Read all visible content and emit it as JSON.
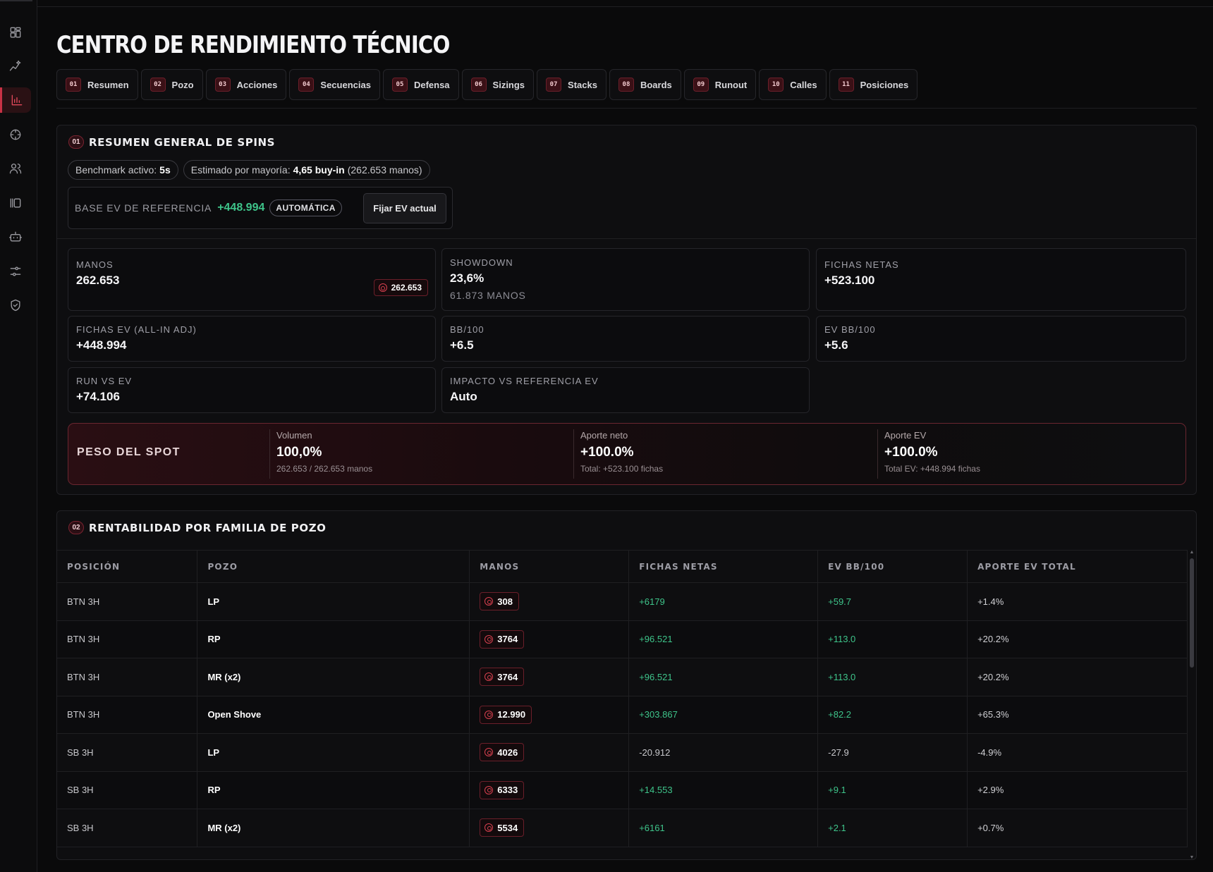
{
  "sidebar": {
    "items": [
      {
        "name": "dashboard-icon"
      },
      {
        "name": "sparkle-chart-icon"
      },
      {
        "name": "bar-chart-icon",
        "active": true
      },
      {
        "name": "crosshair-icon"
      },
      {
        "name": "users-icon"
      },
      {
        "name": "library-icon"
      },
      {
        "name": "bot-icon"
      },
      {
        "name": "sliders-icon"
      },
      {
        "name": "shield-check-icon"
      }
    ]
  },
  "page": {
    "title": "CENTRO DE RENDIMIENTO TÉCNICO"
  },
  "tabs": [
    {
      "num": "01",
      "label": "Resumen"
    },
    {
      "num": "02",
      "label": "Pozo"
    },
    {
      "num": "03",
      "label": "Acciones"
    },
    {
      "num": "04",
      "label": "Secuencias"
    },
    {
      "num": "05",
      "label": "Defensa"
    },
    {
      "num": "06",
      "label": "Sizings"
    },
    {
      "num": "07",
      "label": "Stacks"
    },
    {
      "num": "08",
      "label": "Boards"
    },
    {
      "num": "09",
      "label": "Runout"
    },
    {
      "num": "10",
      "label": "Calles"
    },
    {
      "num": "11",
      "label": "Posiciones"
    }
  ],
  "summary": {
    "num": "01",
    "title": "RESUMEN GENERAL DE SPINS",
    "benchmark_label": "Benchmark activo:",
    "benchmark_value": "5s",
    "estimate_label": "Estimado por mayoría:",
    "estimate_value": "4,65 buy-in",
    "estimate_extra": "(262.653 manos)",
    "base_ev_label": "BASE EV DE REFERENCIA",
    "base_ev_value": "+448.994",
    "base_ev_badge": "AUTOMÁTICA",
    "fix_button": "Fijar EV actual",
    "stats": {
      "manos": {
        "label": "MANOS",
        "value": "262.653",
        "chip": "262.653"
      },
      "showdown": {
        "label": "SHOWDOWN",
        "value": "23,6%",
        "sub": "61.873 MANOS"
      },
      "fichas_netas": {
        "label": "FICHAS NETAS",
        "value": "+523.100"
      },
      "fichas_ev": {
        "label": "FICHAS EV (ALL-IN ADJ)",
        "value": "+448.994"
      },
      "bb100": {
        "label": "BB/100",
        "value": "+6.5"
      },
      "ev_bb100": {
        "label": "EV BB/100",
        "value": "+5.6"
      },
      "run_vs_ev": {
        "label": "RUN VS EV",
        "value": "+74.106"
      },
      "impacto": {
        "label": "IMPACTO VS REFERENCIA EV",
        "value": "Auto"
      }
    },
    "spot": {
      "title": "PESO DEL SPOT",
      "volumen": {
        "label": "Volumen",
        "value": "100,0%",
        "sub": "262.653 / 262.653 manos"
      },
      "aporte_neto": {
        "label": "Aporte neto",
        "value": "+100.0%",
        "sub": "Total: +523.100 fichas"
      },
      "aporte_ev": {
        "label": "Aporte EV",
        "value": "+100.0%",
        "sub": "Total EV: +448.994 fichas"
      }
    }
  },
  "pozo": {
    "num": "02",
    "title": "RENTABILIDAD POR FAMILIA DE POZO",
    "columns": [
      "POSICIÓN",
      "POZO",
      "MANOS",
      "FICHAS NETAS",
      "EV BB/100",
      "APORTE EV TOTAL"
    ],
    "rows": [
      {
        "pos": "BTN 3H",
        "pozo": "LP",
        "manos": "308",
        "fichas": "+6179",
        "ev": "+59.7",
        "aporte": "+1.4%",
        "positive": true
      },
      {
        "pos": "BTN 3H",
        "pozo": "RP",
        "manos": "3764",
        "fichas": "+96.521",
        "ev": "+113.0",
        "aporte": "+20.2%",
        "positive": true
      },
      {
        "pos": "BTN 3H",
        "pozo": "MR (x2)",
        "manos": "3764",
        "fichas": "+96.521",
        "ev": "+113.0",
        "aporte": "+20.2%",
        "positive": true
      },
      {
        "pos": "BTN 3H",
        "pozo": "Open Shove",
        "manos": "12.990",
        "fichas": "+303.867",
        "ev": "+82.2",
        "aporte": "+65.3%",
        "positive": true
      },
      {
        "pos": "SB 3H",
        "pozo": "LP",
        "manos": "4026",
        "fichas": "-20.912",
        "ev": "-27.9",
        "aporte": "-4.9%",
        "positive": false
      },
      {
        "pos": "SB 3H",
        "pozo": "RP",
        "manos": "6333",
        "fichas": "+14.553",
        "ev": "+9.1",
        "aporte": "+2.9%",
        "positive": true
      },
      {
        "pos": "SB 3H",
        "pozo": "MR (x2)",
        "manos": "5534",
        "fichas": "+6161",
        "ev": "+2.1",
        "aporte": "+0.7%",
        "positive": true
      }
    ]
  }
}
